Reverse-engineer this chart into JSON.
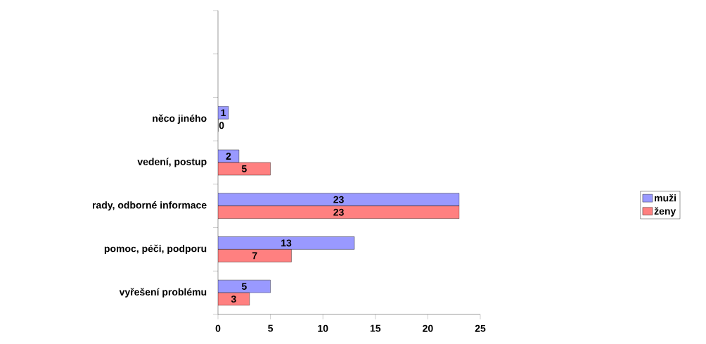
{
  "chart_data": {
    "type": "bar",
    "orientation": "horizontal",
    "categories": [
      null,
      null,
      "něco jiného",
      "vedení, postup",
      "rady, odborné informace",
      "pomoc, péči, podporu",
      "vyřešení problému"
    ],
    "series": [
      {
        "name": "muži",
        "color": "#9999ff",
        "values": [
          null,
          null,
          1,
          2,
          23,
          13,
          5
        ]
      },
      {
        "name": "ženy",
        "color": "#ff8080",
        "values": [
          null,
          null,
          0,
          5,
          23,
          7,
          3
        ]
      }
    ],
    "xlim": [
      0,
      25
    ],
    "xticks": [
      0,
      5,
      10,
      15,
      20,
      25
    ],
    "data_labels": true,
    "legend": "right",
    "grid": false
  }
}
